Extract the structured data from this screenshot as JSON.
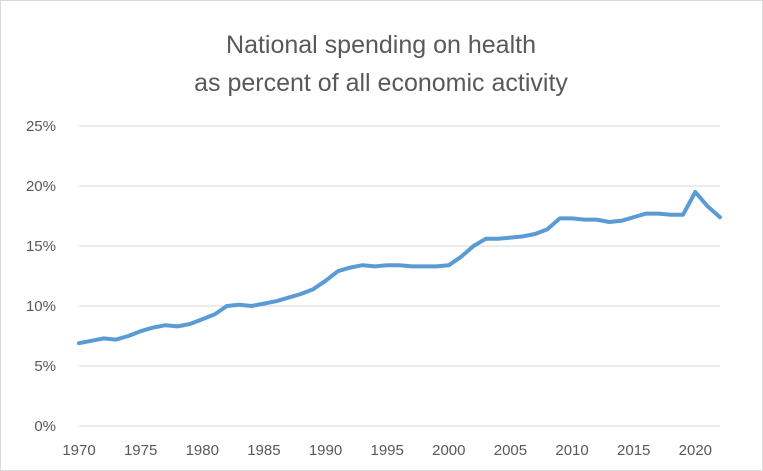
{
  "chart_data": {
    "type": "line",
    "title": [
      "National spending on health",
      "as percent of all economic activity"
    ],
    "xlabel": "",
    "ylabel": "",
    "xlim": [
      1970,
      2022
    ],
    "ylim": [
      0,
      25
    ],
    "x_ticks": [
      "1970",
      "1975",
      "1980",
      "1985",
      "1990",
      "1995",
      "2000",
      "2005",
      "2010",
      "2015",
      "2020"
    ],
    "y_ticks": [
      "0%",
      "5%",
      "10%",
      "15%",
      "20%",
      "25%"
    ],
    "grid": true,
    "legend": "none",
    "colors": {
      "series": "#5b9bd5",
      "grid": "#d9d9d9",
      "text": "#595959"
    },
    "x": [
      1970,
      1971,
      1972,
      1973,
      1974,
      1975,
      1976,
      1977,
      1978,
      1979,
      1980,
      1981,
      1982,
      1983,
      1984,
      1985,
      1986,
      1987,
      1988,
      1989,
      1990,
      1991,
      1992,
      1993,
      1994,
      1995,
      1996,
      1997,
      1998,
      1999,
      2000,
      2001,
      2002,
      2003,
      2004,
      2005,
      2006,
      2007,
      2008,
      2009,
      2010,
      2011,
      2012,
      2013,
      2014,
      2015,
      2016,
      2017,
      2018,
      2019,
      2020,
      2021,
      2022
    ],
    "series": [
      {
        "values": [
          6.9,
          7.1,
          7.3,
          7.2,
          7.5,
          7.9,
          8.2,
          8.4,
          8.3,
          8.5,
          8.9,
          9.3,
          10.0,
          10.1,
          10.0,
          10.2,
          10.4,
          10.7,
          11.0,
          11.4,
          12.1,
          12.9,
          13.2,
          13.4,
          13.3,
          13.4,
          13.4,
          13.3,
          13.3,
          13.3,
          13.4,
          14.1,
          15.0,
          15.6,
          15.6,
          15.7,
          15.8,
          16.0,
          16.4,
          17.3,
          17.3,
          17.2,
          17.2,
          17.0,
          17.1,
          17.4,
          17.7,
          17.7,
          17.6,
          17.6,
          19.5,
          18.3,
          17.4
        ]
      }
    ]
  }
}
